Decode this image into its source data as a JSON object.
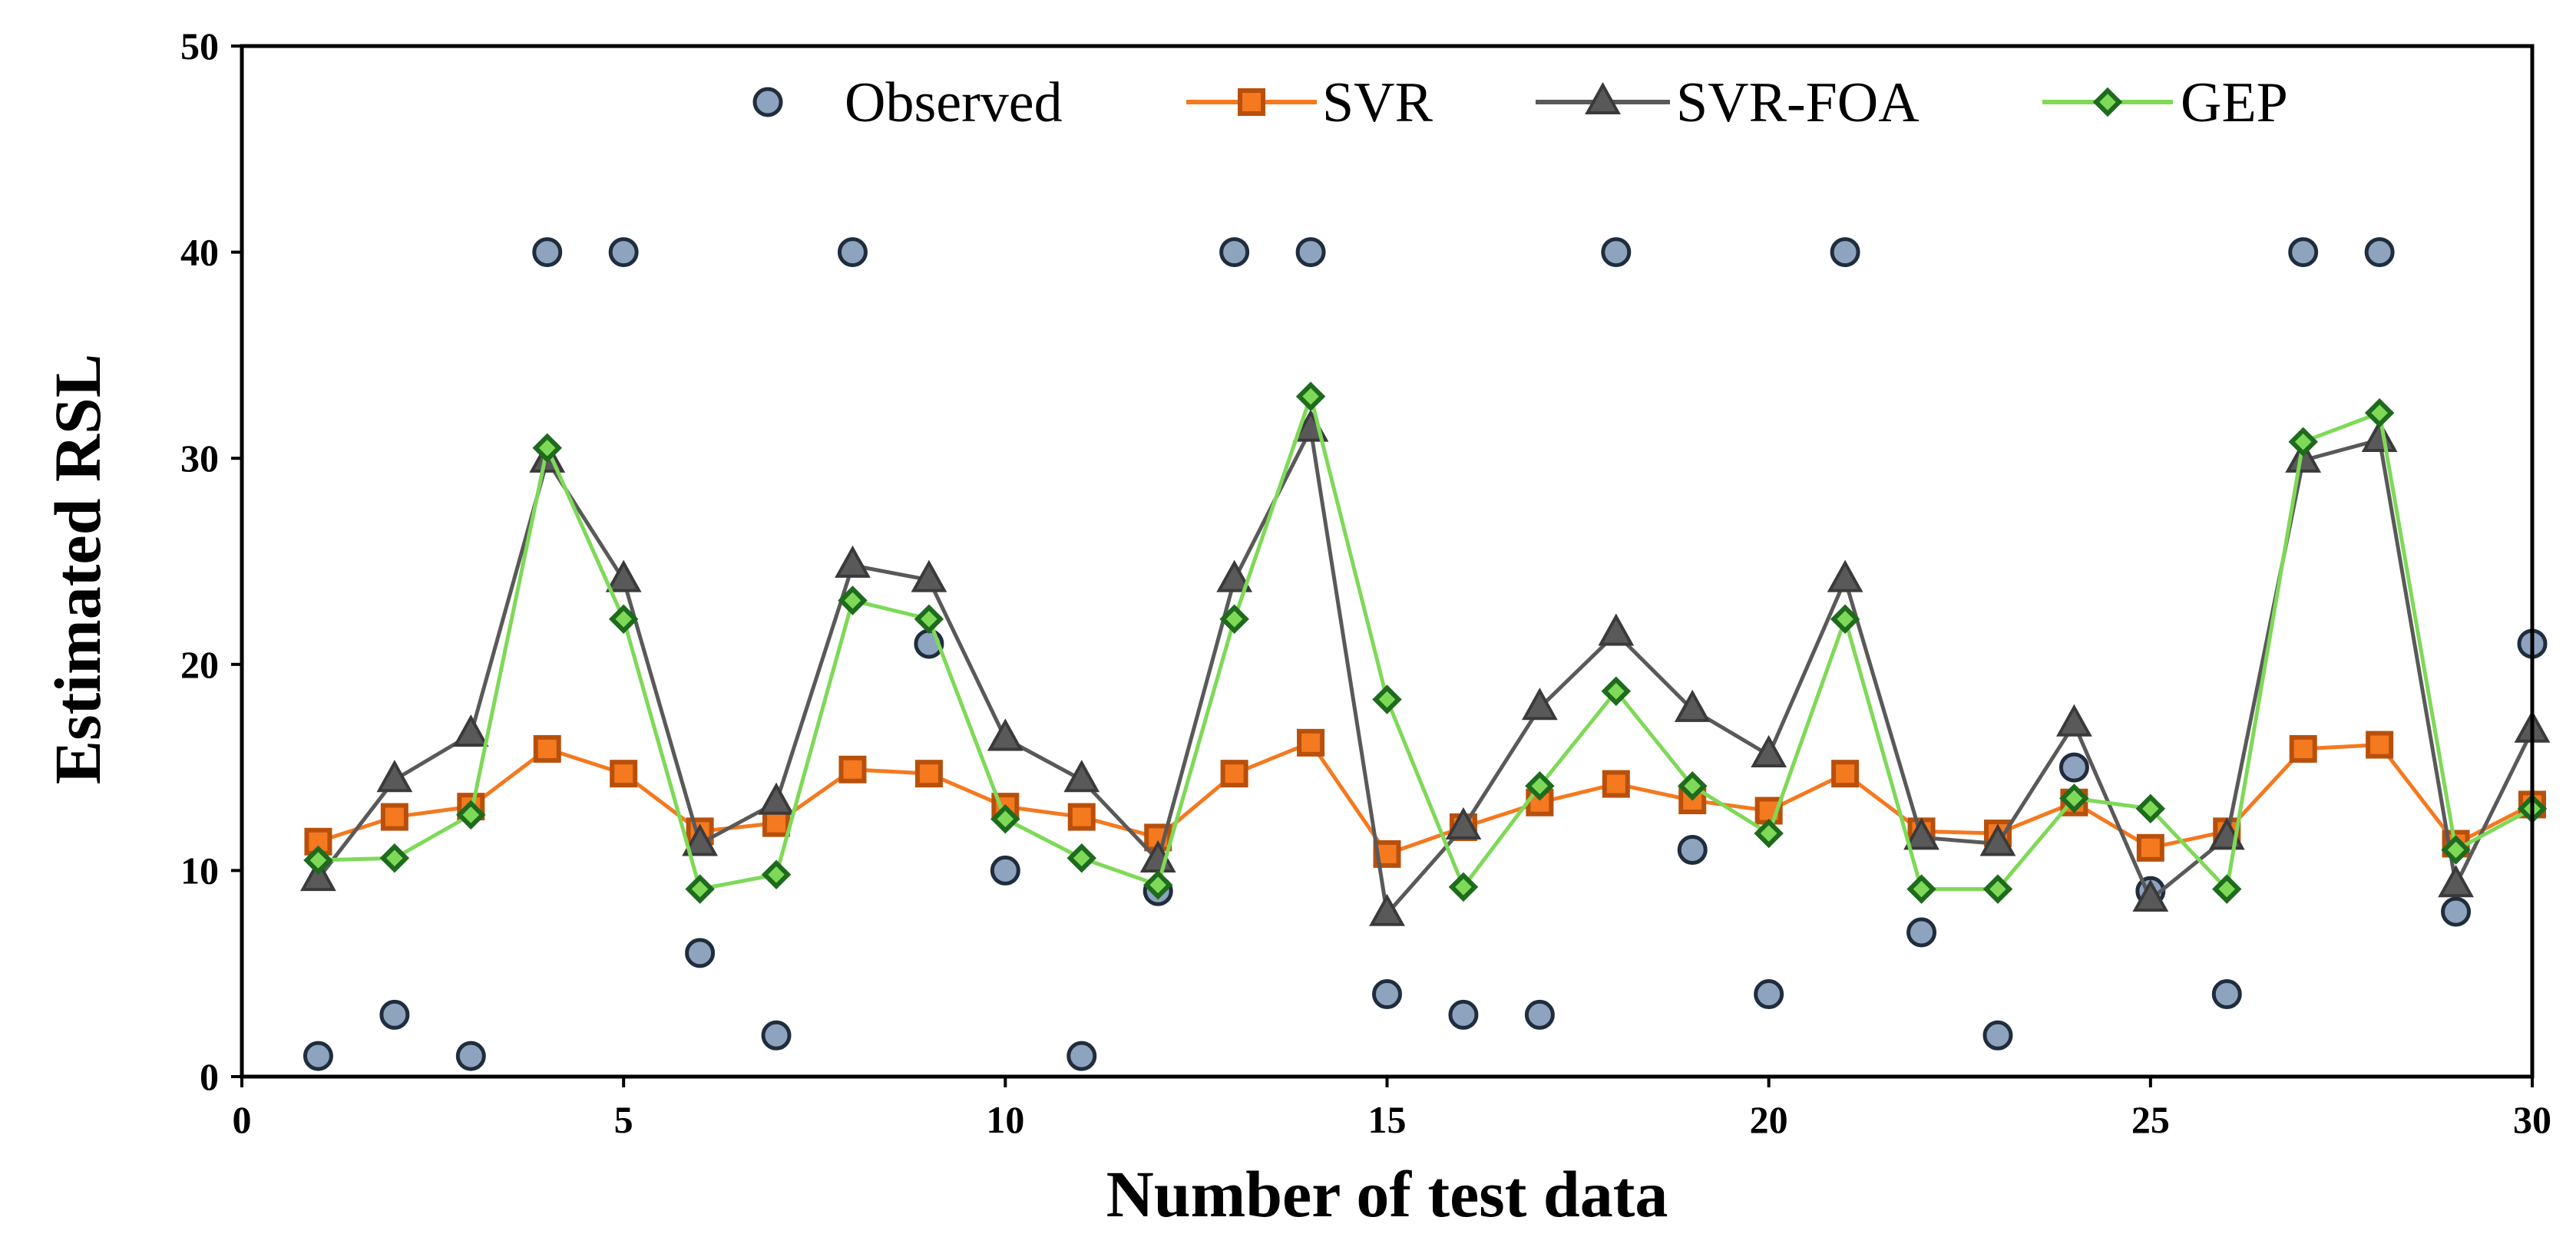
{
  "chart_data": {
    "type": "line",
    "title": "",
    "xlabel": "Number of test data",
    "ylabel": "Estimated RSL",
    "xlim": [
      0,
      30
    ],
    "ylim": [
      0,
      50
    ],
    "x_ticks": [
      0,
      5,
      10,
      15,
      20,
      25,
      30
    ],
    "y_ticks": [
      0,
      10,
      20,
      30,
      40,
      50
    ],
    "x_tick_labels": [
      "0",
      "5",
      "10",
      "15",
      "20",
      "25",
      "30"
    ],
    "y_tick_labels": [
      "0",
      "10",
      "20",
      "30",
      "40",
      "50"
    ],
    "grid": false,
    "legend_position": "top",
    "x": [
      1,
      2,
      3,
      4,
      5,
      6,
      7,
      8,
      9,
      10,
      11,
      12,
      13,
      14,
      15,
      16,
      17,
      18,
      19,
      20,
      21,
      22,
      23,
      24,
      25,
      26,
      27,
      28,
      29,
      30
    ],
    "series": [
      {
        "name": "Observed",
        "style": "scatter",
        "marker": "circle",
        "color": "#8ea3be",
        "edge_color": "#1f2d3d",
        "values": [
          1,
          3,
          1,
          40,
          40,
          6,
          2,
          40,
          21,
          10,
          1,
          9,
          40,
          40,
          4,
          3,
          3,
          40,
          11,
          4,
          40,
          7,
          2,
          15,
          9,
          4,
          40,
          40,
          8,
          21
        ]
      },
      {
        "name": "SVR",
        "style": "line",
        "marker": "square",
        "color": "#f4791f",
        "edge_color": "#b8500b",
        "values": [
          11.4,
          12.6,
          13.1,
          15.9,
          14.7,
          11.9,
          12.3,
          14.9,
          14.7,
          13.1,
          12.6,
          11.6,
          14.7,
          16.2,
          10.8,
          12.1,
          13.3,
          14.2,
          13.4,
          12.9,
          14.7,
          11.9,
          11.8,
          13.3,
          11.1,
          11.9,
          15.9,
          16.1,
          11.3,
          13.2
        ]
      },
      {
        "name": "SVR-FOA",
        "style": "line",
        "marker": "triangle",
        "color": "#595959",
        "edge_color": "#3a3a3a",
        "values": [
          9.6,
          14.4,
          16.6,
          29.9,
          24.1,
          11.3,
          13.3,
          24.8,
          24.1,
          16.4,
          14.4,
          10.5,
          24.1,
          31.4,
          7.9,
          12.1,
          17.9,
          21.5,
          17.8,
          15.6,
          24.1,
          11.6,
          11.3,
          17.1,
          8.6,
          11.6,
          29.9,
          30.9,
          9.3,
          16.8
        ]
      },
      {
        "name": "GEP",
        "style": "line",
        "marker": "diamond",
        "color": "#7ed957",
        "edge_color": "#1e6b1e",
        "values": [
          10.5,
          10.6,
          12.7,
          30.5,
          22.2,
          9.1,
          9.8,
          23.1,
          22.2,
          12.5,
          10.6,
          9.3,
          22.2,
          33.0,
          18.3,
          9.2,
          14.1,
          18.7,
          14.1,
          11.8,
          22.2,
          9.1,
          9.1,
          13.5,
          13.0,
          9.1,
          30.8,
          32.2,
          11.0,
          13.0
        ]
      }
    ]
  }
}
